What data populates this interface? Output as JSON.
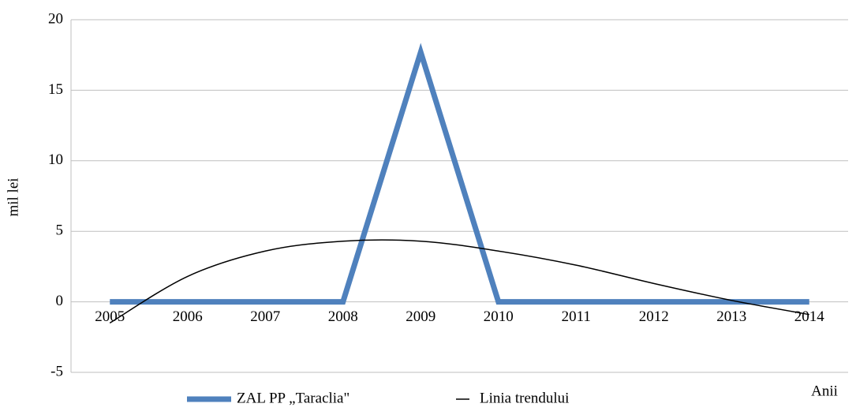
{
  "chart_data": {
    "type": "line",
    "categories": [
      "2005",
      "2006",
      "2007",
      "2008",
      "2009",
      "2010",
      "2011",
      "2012",
      "2013",
      "2014"
    ],
    "series": [
      {
        "name": "ZAL PP „Taraclia\"",
        "color": "#4f81bd",
        "values": [
          0,
          0,
          0,
          0,
          17.7,
          0,
          0,
          0,
          0,
          0
        ]
      },
      {
        "name": "Linia trendului",
        "color": "#000000",
        "values": [
          -1.5,
          1.8,
          3.6,
          4.3,
          4.3,
          3.6,
          2.6,
          1.3,
          0.1,
          -0.9
        ]
      }
    ],
    "ylabel": "mil lei",
    "xlabel": "Anii",
    "ylim": [
      -5,
      20
    ],
    "yticks": [
      -5,
      0,
      5,
      10,
      15,
      20
    ],
    "grid": true,
    "legend": "bottom"
  }
}
